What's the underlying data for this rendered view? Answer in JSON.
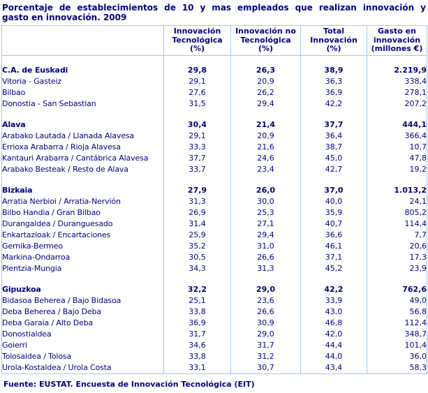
{
  "title": {
    "line1": "Porcentaje de establecimientos de 10 y mas empleados que realizan innovación y",
    "line2": "gasto en innovación. 2009"
  },
  "footer": {
    "source": "Fuente: EUSTAT. Encuesta de Innovación Tecnológica (EIT)"
  },
  "colors": {
    "text_navy": "#000080",
    "border_light_blue": "#9CC9F0",
    "background": "#FFFFFF"
  },
  "chart_data": {
    "type": "table",
    "title": "Porcentaje de establecimientos de 10 y mas empleados que realizan innovación y gasto en innovación. 2009",
    "columns": [
      "Innovación Tecnológica (%)",
      "Innovación no Tecnológica (%)",
      "Total Innovación (%)",
      "Gasto en innovación (millones €)"
    ],
    "column_header_lines": [
      [
        "Innovación",
        "Tecnológica",
        "(%)"
      ],
      [
        "Innovación no",
        "Tecnológica",
        "(%)"
      ],
      [
        "Total",
        "Innovación",
        "(%)"
      ],
      [
        "Gasto en",
        "innovación",
        "(millones €)"
      ]
    ],
    "sections": [
      {
        "rows": [
          {
            "label": "C.A. de Euskadi",
            "bold": true,
            "values": [
              29.8,
              26.3,
              38.9,
              2219.9
            ]
          },
          {
            "label": "Vitoria - Gasteiz",
            "bold": false,
            "values": [
              29.1,
              20.9,
              36.3,
              338.4
            ]
          },
          {
            "label": "Bilbao",
            "bold": false,
            "values": [
              27.6,
              26.2,
              36.9,
              278.1
            ]
          },
          {
            "label": "Donostia - San Sebastian",
            "bold": false,
            "values": [
              31.5,
              29.4,
              42.2,
              207.2
            ]
          }
        ]
      },
      {
        "rows": [
          {
            "label": "Alava",
            "bold": true,
            "values": [
              30.4,
              21.4,
              37.7,
              444.1
            ]
          },
          {
            "label": "Arabako Lautada / Llanada Alavesa",
            "bold": false,
            "values": [
              29.1,
              20.9,
              36.4,
              366.4
            ]
          },
          {
            "label": "Errioxa Arabarra / Rioja Alavesa",
            "bold": false,
            "values": [
              33.3,
              21.6,
              38.7,
              10.7
            ]
          },
          {
            "label": "Kantauri Arabarra / Cantábrica Alavesa",
            "bold": false,
            "values": [
              37.7,
              24.6,
              45.0,
              47.8
            ]
          },
          {
            "label": "Arabako Besteak / Resto de Alava",
            "bold": false,
            "values": [
              33.7,
              23.4,
              42.7,
              19.2
            ]
          }
        ]
      },
      {
        "rows": [
          {
            "label": "Bizkaia",
            "bold": true,
            "values": [
              27.9,
              26.0,
              37.0,
              1013.2
            ]
          },
          {
            "label": "Arratia Nerbioi / Arratia-Nervión",
            "bold": false,
            "values": [
              31.3,
              30.0,
              40.0,
              24.1
            ]
          },
          {
            "label": "Bilbo Handia / Gran Bilbao",
            "bold": false,
            "values": [
              26.9,
              25.3,
              35.9,
              805.2
            ]
          },
          {
            "label": "Durangaldea / Duranguesado",
            "bold": false,
            "values": [
              31.4,
              27.1,
              40.7,
              114.4
            ]
          },
          {
            "label": "Enkartazioak / Encartaciones",
            "bold": false,
            "values": [
              25.9,
              29.4,
              36.6,
              7.7
            ]
          },
          {
            "label": "Gernika-Bermeo",
            "bold": false,
            "values": [
              35.2,
              31.0,
              46.1,
              20.6
            ]
          },
          {
            "label": "Markina-Ondarroa",
            "bold": false,
            "values": [
              30.5,
              26.6,
              37.1,
              17.3
            ]
          },
          {
            "label": "Plentzia-Mungia",
            "bold": false,
            "values": [
              34.3,
              31.3,
              45.2,
              23.9
            ]
          }
        ]
      },
      {
        "rows": [
          {
            "label": "Gipuzkoa",
            "bold": true,
            "values": [
              32.2,
              29.0,
              42.2,
              762.6
            ]
          },
          {
            "label": "Bidasoa Beherea / Bajo Bidasoa",
            "bold": false,
            "values": [
              25.1,
              23.6,
              33.9,
              49.0
            ]
          },
          {
            "label": "Deba Beherea / Bajo Deba",
            "bold": false,
            "values": [
              33.8,
              26.6,
              43.0,
              56.8
            ]
          },
          {
            "label": "Deba Garaia / Alto Deba",
            "bold": false,
            "values": [
              36.9,
              30.9,
              46.8,
              112.4
            ]
          },
          {
            "label": "Donostialdea",
            "bold": false,
            "values": [
              31.7,
              29.0,
              42.0,
              348.7
            ]
          },
          {
            "label": "Goierri",
            "bold": false,
            "values": [
              34.6,
              31.7,
              44.4,
              101.4
            ]
          },
          {
            "label": "Tolosaldea / Tolosa",
            "bold": false,
            "values": [
              33.8,
              31.2,
              44.0,
              36.0
            ]
          },
          {
            "label": "Urola-Kostaldea / Urola Costa",
            "bold": false,
            "values": [
              33.1,
              30.7,
              43.4,
              58.3
            ]
          }
        ]
      }
    ]
  }
}
